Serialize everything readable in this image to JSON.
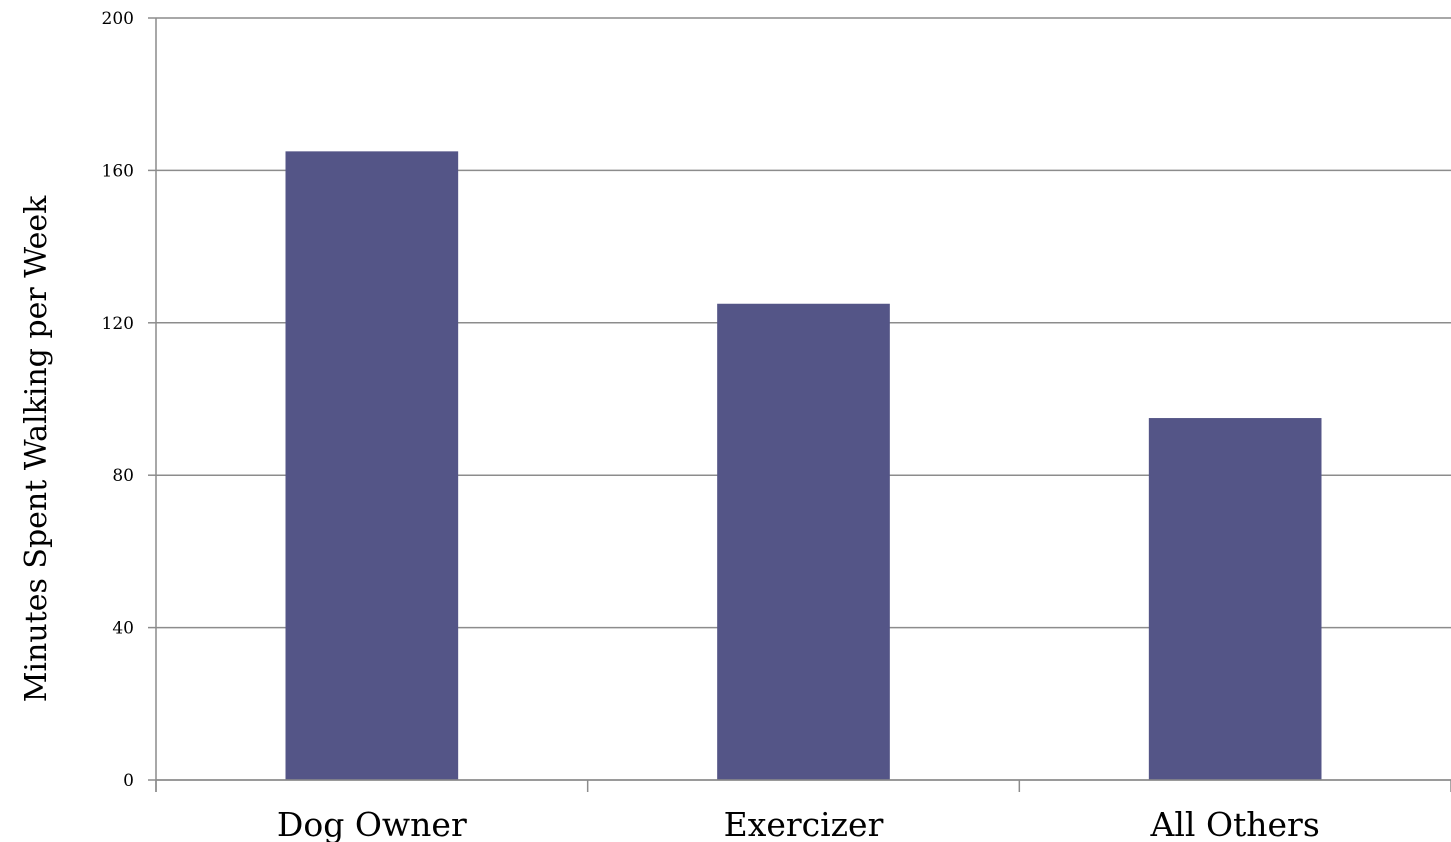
{
  "chart_data": {
    "type": "bar",
    "title": "",
    "xlabel": "",
    "ylabel": "Minutes Spent Walking per Week",
    "categories": [
      "Dog Owner",
      "Exercizer",
      "All Others"
    ],
    "values": [
      165,
      125,
      95
    ],
    "ylim": [
      0,
      200
    ],
    "yticks": [
      0,
      40,
      80,
      120,
      160,
      200
    ],
    "grid": true,
    "legend": "none",
    "bar_color": "#545587"
  }
}
